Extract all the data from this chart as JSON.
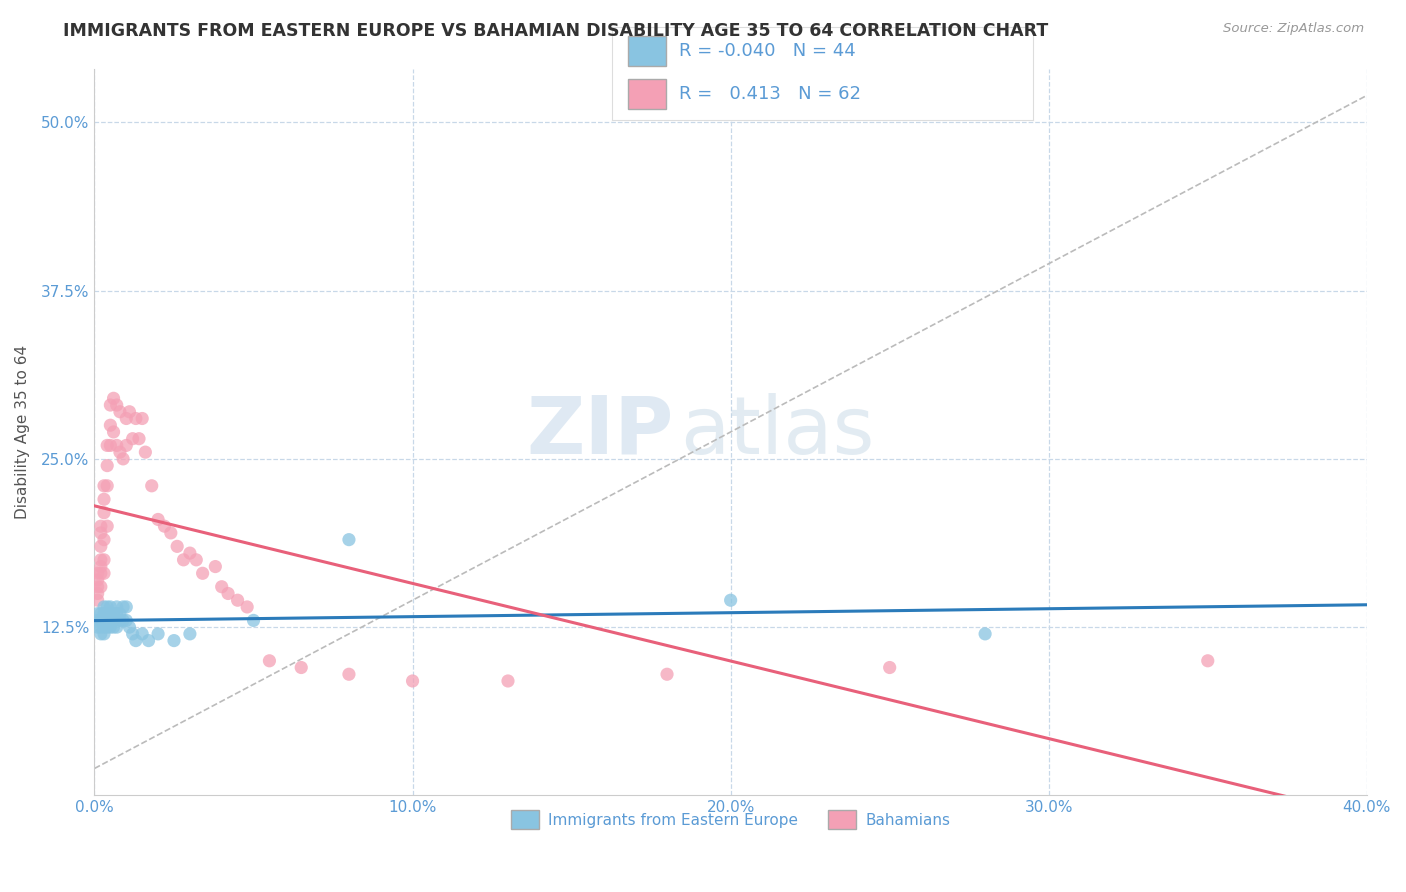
{
  "title": "IMMIGRANTS FROM EASTERN EUROPE VS BAHAMIAN DISABILITY AGE 35 TO 64 CORRELATION CHART",
  "source": "Source: ZipAtlas.com",
  "ylabel": "Disability Age 35 to 64",
  "xlim": [
    0.0,
    0.4
  ],
  "ylim": [
    0.0,
    0.54
  ],
  "xtick_labels": [
    "0.0%",
    "10.0%",
    "20.0%",
    "30.0%",
    "40.0%"
  ],
  "xtick_values": [
    0.0,
    0.1,
    0.2,
    0.3,
    0.4
  ],
  "ytick_labels": [
    "12.5%",
    "25.0%",
    "37.5%",
    "50.0%"
  ],
  "ytick_values": [
    0.125,
    0.25,
    0.375,
    0.5
  ],
  "blue_R": -0.04,
  "blue_N": 44,
  "pink_R": 0.413,
  "pink_N": 62,
  "blue_color": "#89c4e1",
  "pink_color": "#f4a0b5",
  "blue_line_color": "#2b7bba",
  "pink_line_color": "#e8607a",
  "background_color": "#ffffff",
  "grid_color": "#c8d8e8",
  "watermark_zip": "ZIP",
  "watermark_atlas": "atlas",
  "legend_label_blue": "Immigrants from Eastern Europe",
  "legend_label_pink": "Bahamians",
  "blue_scatter_x": [
    0.001,
    0.001,
    0.001,
    0.002,
    0.002,
    0.002,
    0.002,
    0.003,
    0.003,
    0.003,
    0.003,
    0.003,
    0.004,
    0.004,
    0.004,
    0.004,
    0.005,
    0.005,
    0.005,
    0.005,
    0.006,
    0.006,
    0.006,
    0.007,
    0.007,
    0.007,
    0.008,
    0.008,
    0.009,
    0.009,
    0.01,
    0.01,
    0.011,
    0.012,
    0.013,
    0.015,
    0.017,
    0.02,
    0.025,
    0.03,
    0.05,
    0.08,
    0.2,
    0.28
  ],
  "blue_scatter_y": [
    0.135,
    0.13,
    0.125,
    0.135,
    0.13,
    0.125,
    0.12,
    0.14,
    0.135,
    0.13,
    0.125,
    0.12,
    0.14,
    0.135,
    0.13,
    0.125,
    0.14,
    0.135,
    0.13,
    0.125,
    0.135,
    0.13,
    0.125,
    0.14,
    0.135,
    0.125,
    0.135,
    0.13,
    0.14,
    0.13,
    0.14,
    0.13,
    0.125,
    0.12,
    0.115,
    0.12,
    0.115,
    0.12,
    0.115,
    0.12,
    0.13,
    0.19,
    0.145,
    0.12
  ],
  "pink_scatter_x": [
    0.001,
    0.001,
    0.001,
    0.001,
    0.001,
    0.002,
    0.002,
    0.002,
    0.002,
    0.002,
    0.002,
    0.002,
    0.003,
    0.003,
    0.003,
    0.003,
    0.003,
    0.003,
    0.004,
    0.004,
    0.004,
    0.004,
    0.005,
    0.005,
    0.005,
    0.006,
    0.006,
    0.007,
    0.007,
    0.008,
    0.008,
    0.009,
    0.01,
    0.01,
    0.011,
    0.012,
    0.013,
    0.014,
    0.015,
    0.016,
    0.018,
    0.02,
    0.022,
    0.024,
    0.026,
    0.028,
    0.03,
    0.032,
    0.034,
    0.038,
    0.04,
    0.042,
    0.045,
    0.048,
    0.055,
    0.065,
    0.08,
    0.1,
    0.13,
    0.18,
    0.25,
    0.35
  ],
  "pink_scatter_y": [
    0.165,
    0.16,
    0.155,
    0.15,
    0.145,
    0.2,
    0.195,
    0.185,
    0.175,
    0.17,
    0.165,
    0.155,
    0.23,
    0.22,
    0.21,
    0.19,
    0.175,
    0.165,
    0.26,
    0.245,
    0.23,
    0.2,
    0.29,
    0.275,
    0.26,
    0.295,
    0.27,
    0.29,
    0.26,
    0.285,
    0.255,
    0.25,
    0.28,
    0.26,
    0.285,
    0.265,
    0.28,
    0.265,
    0.28,
    0.255,
    0.23,
    0.205,
    0.2,
    0.195,
    0.185,
    0.175,
    0.18,
    0.175,
    0.165,
    0.17,
    0.155,
    0.15,
    0.145,
    0.14,
    0.1,
    0.095,
    0.09,
    0.085,
    0.085,
    0.09,
    0.095,
    0.1
  ]
}
